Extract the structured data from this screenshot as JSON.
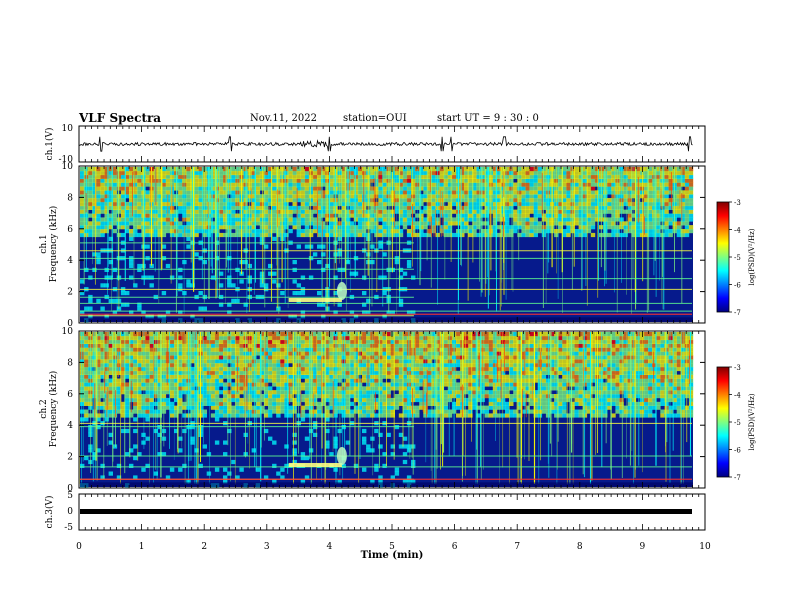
{
  "header": {
    "title": "VLF Spectra",
    "date": "Nov.11, 2022",
    "station": "station=OUI",
    "start": "start  UT =  9 : 30 : 0"
  },
  "chart_data": [
    {
      "type": "line",
      "panel": "ch1-waveform",
      "ylabel": "ch.1(V)",
      "ylim": [
        -10,
        10
      ],
      "yticks": [
        "10",
        "-10"
      ],
      "xlim": [
        0,
        10
      ],
      "description_values": {
        "baseline_v": 0,
        "spike_times_min": [
          0.35,
          2.42,
          4.0,
          5.8,
          5.95,
          6.8,
          9.75
        ]
      }
    },
    {
      "type": "heatmap",
      "panel": "ch1-spectrogram",
      "ylabel": "ch.1\nFrequency (kHz)",
      "ylabel_line1": "ch.1",
      "ylabel_line2": "Frequency (kHz)",
      "ylim": [
        0,
        10
      ],
      "yticks": [
        "0",
        "2",
        "4",
        "6",
        "8",
        "10"
      ],
      "xlim": [
        0,
        10
      ],
      "colorbar": {
        "label": "log(PSD)(V²/Hz)",
        "range": [
          -7,
          -3
        ],
        "ticks": [
          "-3",
          "-4",
          "-5",
          "-6",
          "-7"
        ]
      },
      "features": {
        "hiss_band_khz": [
          5.5,
          10
        ],
        "noise_lines_khz": [
          0.4,
          0.7,
          1.2,
          1.6,
          2.1,
          2.8,
          3.4,
          4.1,
          4.6,
          5.1
        ],
        "burst_time_min": 4.2,
        "transition_time_min": 5.35
      }
    },
    {
      "type": "heatmap",
      "panel": "ch2-spectrogram",
      "ylabel": "ch.2\nFrequency (kHz)",
      "ylabel_line1": "ch.2",
      "ylabel_line2": "Frequency (kHz)",
      "ylim": [
        0,
        10
      ],
      "yticks": [
        "0",
        "2",
        "4",
        "6",
        "8",
        "10"
      ],
      "xlim": [
        0,
        10
      ],
      "colorbar": {
        "label": "log(PSD)(V²/Hz)",
        "range": [
          -7,
          -3
        ],
        "ticks": [
          "-3",
          "-4",
          "-5",
          "-6",
          "-7"
        ]
      },
      "features": {
        "hiss_band_khz": [
          4.5,
          10
        ],
        "noise_lines_khz": [
          0.5,
          1.3,
          2.0,
          3.9,
          4.1
        ],
        "burst_time_min": 4.2,
        "transition_time_min": 5.35
      }
    },
    {
      "type": "line",
      "panel": "ch3-waveform",
      "ylabel": "ch.3(V)",
      "ylim": [
        -5,
        5
      ],
      "yticks": [
        "5",
        "0",
        "-5"
      ],
      "xlim": [
        0,
        10
      ],
      "description_values": {
        "level_v": -0.3
      }
    }
  ],
  "xaxis": {
    "label": "Time  (min)",
    "ticks": [
      "0",
      "1",
      "2",
      "3",
      "4",
      "5",
      "6",
      "7",
      "8",
      "9",
      "10"
    ]
  },
  "colors": {
    "colormap": [
      "#000080",
      "#0000ff",
      "#0080ff",
      "#00ffff",
      "#80ff80",
      "#ffff00",
      "#ff8000",
      "#ff0000",
      "#800000"
    ]
  }
}
